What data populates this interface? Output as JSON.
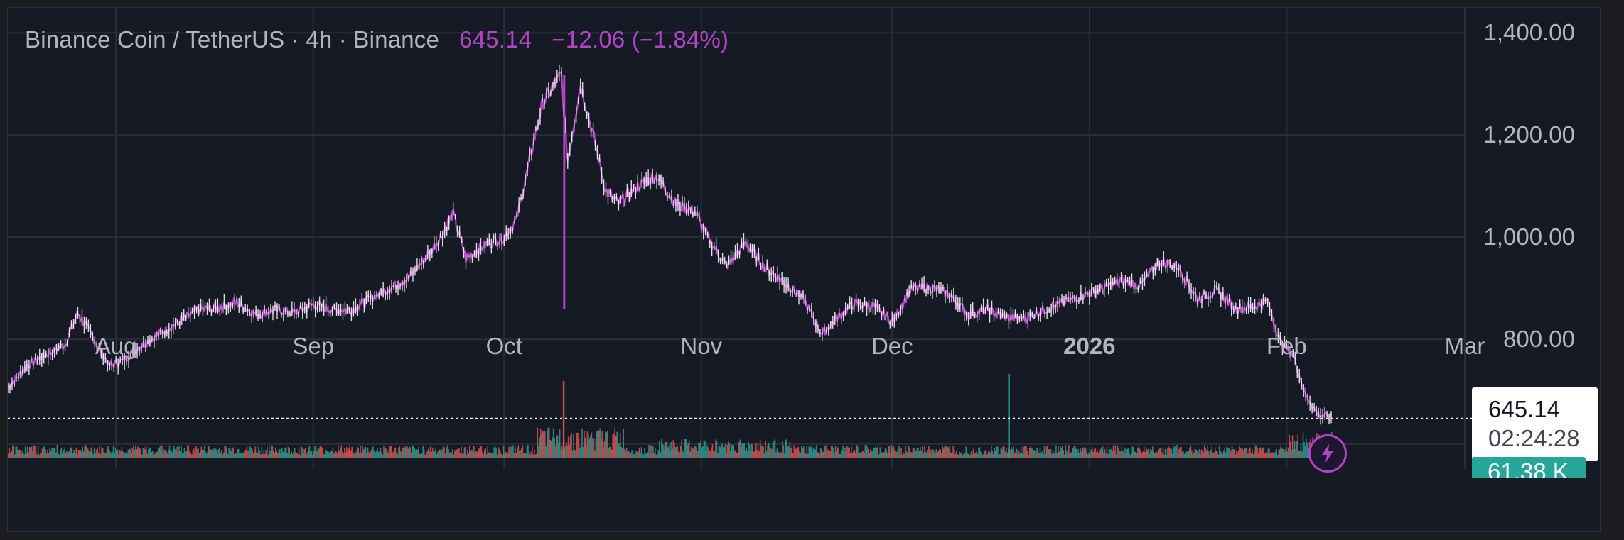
{
  "header": {
    "symbol": "Binance Coin / TetherUS",
    "sep1": " · ",
    "interval": "4h",
    "sep2": " · ",
    "exchange": "Binance",
    "last_price": "645.14",
    "change": "−12.06",
    "change_pct": "(−1.84%)"
  },
  "price_label": {
    "value": "645.14",
    "countdown": "02:24:28"
  },
  "volume_label": {
    "value": "61.38 K"
  },
  "colors": {
    "background": "#161a25",
    "line": "#b344c6",
    "candle_up": "#ffffff",
    "volume_up": "#26a69a",
    "volume_down": "#ef5350",
    "grid": "#2a2e39",
    "text": "#b2b5be"
  },
  "chart_data": {
    "type": "line",
    "title": "Binance Coin / TetherUS · 4h · Binance",
    "y_ticks": [
      "1,400.00",
      "1,200.00",
      "1,000.00",
      "800.00"
    ],
    "y_tick_values": [
      1400,
      1200,
      1000,
      800
    ],
    "ylim": [
      560,
      1435
    ],
    "x_tick_labels": [
      "Aug",
      "Sep",
      "Oct",
      "Nov",
      "Dec",
      "2026",
      "Feb",
      "Mar"
    ],
    "x_tick_dates": [
      "2025-08-01",
      "2025-09-01",
      "2025-10-01",
      "2025-11-01",
      "2025-12-01",
      "2026-01-01",
      "2026-02-01",
      "2026-03-01"
    ],
    "xlim": [
      "2025-07-15",
      "2026-03-01"
    ],
    "grid": true,
    "series": [
      {
        "x": [
          "2025-07-15",
          "2025-07-18",
          "2025-07-21",
          "2025-07-24",
          "2025-07-26",
          "2025-07-28",
          "2025-07-31",
          "2025-08-02",
          "2025-08-05",
          "2025-08-08",
          "2025-08-11",
          "2025-08-14",
          "2025-08-17",
          "2025-08-20",
          "2025-08-23",
          "2025-08-26",
          "2025-08-29",
          "2025-09-01",
          "2025-09-04",
          "2025-09-07",
          "2025-09-10",
          "2025-09-13",
          "2025-09-16",
          "2025-09-19",
          "2025-09-21",
          "2025-09-23",
          "2025-09-25",
          "2025-09-28",
          "2025-10-01",
          "2025-10-03",
          "2025-10-05",
          "2025-10-07",
          "2025-10-09",
          "2025-10-10",
          "2025-10-11",
          "2025-10-13",
          "2025-10-15",
          "2025-10-17",
          "2025-10-19",
          "2025-10-22",
          "2025-10-25",
          "2025-10-28",
          "2025-10-31",
          "2025-11-02",
          "2025-11-05",
          "2025-11-08",
          "2025-11-11",
          "2025-11-14",
          "2025-11-17",
          "2025-11-20",
          "2025-11-22",
          "2025-11-25",
          "2025-11-28",
          "2025-12-01",
          "2025-12-04",
          "2025-12-07",
          "2025-12-10",
          "2025-12-13",
          "2025-12-16",
          "2025-12-19",
          "2025-12-22",
          "2025-12-25",
          "2025-12-28",
          "2025-12-31",
          "2026-01-03",
          "2026-01-06",
          "2026-01-09",
          "2026-01-12",
          "2026-01-15",
          "2026-01-18",
          "2026-01-21",
          "2026-01-24",
          "2026-01-27",
          "2026-01-29",
          "2026-01-31",
          "2026-02-02",
          "2026-02-04",
          "2026-02-06",
          "2026-02-08"
        ],
        "values": [
          705,
          748,
          770,
          790,
          852,
          812,
          748,
          758,
          788,
          812,
          835,
          858,
          862,
          872,
          848,
          858,
          852,
          868,
          858,
          858,
          880,
          900,
          920,
          965,
          1000,
          1045,
          958,
          985,
          1000,
          1035,
          1150,
          1260,
          1300,
          1318,
          1150,
          1300,
          1200,
          1090,
          1065,
          1100,
          1120,
          1065,
          1050,
          1000,
          942,
          990,
          940,
          912,
          880,
          810,
          838,
          870,
          865,
          835,
          898,
          902,
          888,
          848,
          858,
          842,
          842,
          858,
          872,
          886,
          898,
          915,
          905,
          952,
          942,
          878,
          895,
          860,
          865,
          875,
          795,
          770,
          690,
          652,
          648
        ]
      }
    ]
  }
}
